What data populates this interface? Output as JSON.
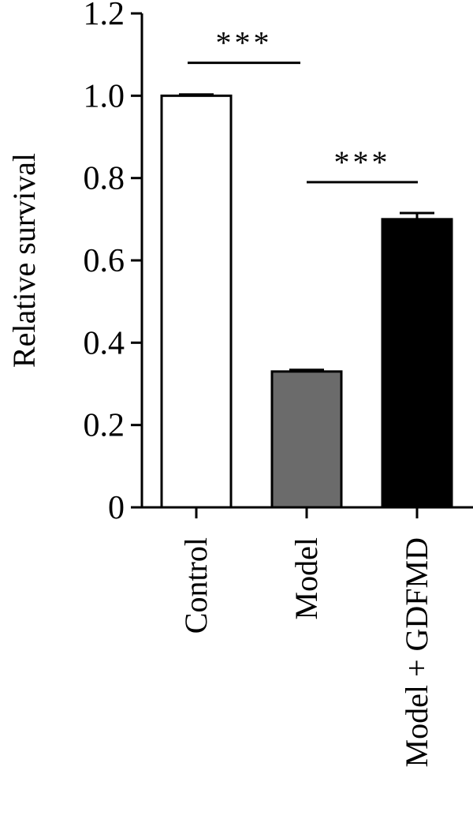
{
  "chart_data": {
    "type": "bar",
    "ylabel": "Relative survival",
    "xlabel": "",
    "title": "",
    "ylim": [
      0,
      1.2
    ],
    "yticks": [
      0,
      0.2,
      0.4,
      0.6,
      0.8,
      1.0,
      1.2
    ],
    "ytick_labels": [
      "0",
      "0.2",
      "0.4",
      "0.6",
      "0.8",
      "1.0",
      "1.2"
    ],
    "categories": [
      "Control",
      "Model",
      "Model + GDFMD"
    ],
    "values": [
      1.0,
      0.33,
      0.7
    ],
    "errors": [
      0.003,
      0.004,
      0.015
    ],
    "colors": [
      "#ffffff",
      "#6b6b6b",
      "#000000"
    ],
    "significance": [
      {
        "from": 0,
        "to": 1,
        "label": "***",
        "y": 1.08
      },
      {
        "from": 1,
        "to": 2,
        "label": "***",
        "y": 0.79
      }
    ],
    "grid": false,
    "legend": "none"
  }
}
